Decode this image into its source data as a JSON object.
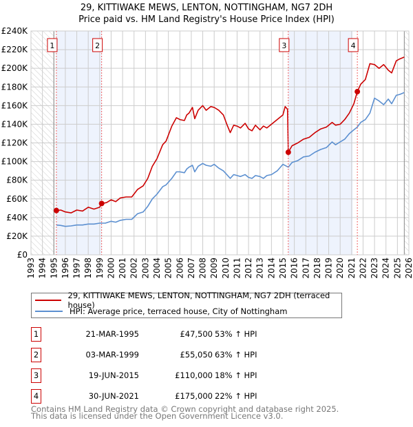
{
  "title": [
    "29, KITTIWAKE MEWS, LENTON, NOTTINGHAM, NG7 2DH",
    "Price paid vs. HM Land Registry's House Price Index (HPI)"
  ],
  "chart_data": {
    "type": "line",
    "title": "29, KITTIWAKE MEWS, LENTON, NOTTINGHAM, NG7 2DH — Price paid vs. HM Land Registry's House Price Index (HPI)",
    "xlim": [
      1993,
      2026
    ],
    "ylim": [
      0,
      240000
    ],
    "x_ticks": [
      "1993",
      "1994",
      "1995",
      "1996",
      "1997",
      "1998",
      "1999",
      "2000",
      "2001",
      "2002",
      "2003",
      "2004",
      "2005",
      "2006",
      "2007",
      "2008",
      "2009",
      "2010",
      "2011",
      "2012",
      "2013",
      "2014",
      "2015",
      "2016",
      "2017",
      "2018",
      "2019",
      "2020",
      "2021",
      "2022",
      "2023",
      "2024",
      "2025",
      "2026"
    ],
    "y_ticks": [
      {
        "v": 0,
        "l": "£0"
      },
      {
        "v": 20000,
        "l": "£20K"
      },
      {
        "v": 40000,
        "l": "£40K"
      },
      {
        "v": 60000,
        "l": "£60K"
      },
      {
        "v": 80000,
        "l": "£80K"
      },
      {
        "v": 100000,
        "l": "£100K"
      },
      {
        "v": 120000,
        "l": "£120K"
      },
      {
        "v": 140000,
        "l": "£140K"
      },
      {
        "v": 160000,
        "l": "£160K"
      },
      {
        "v": 180000,
        "l": "£180K"
      },
      {
        "v": 200000,
        "l": "£200K"
      },
      {
        "v": 220000,
        "l": "£220K"
      },
      {
        "v": 240000,
        "l": "£240K"
      }
    ],
    "grid": true,
    "shaded_ranges": [
      [
        1995.22,
        1999.17
      ],
      [
        2015.47,
        2021.1
      ]
    ],
    "hatched_ranges": [
      [
        1993,
        1995.0
      ],
      [
        2025.6,
        2026
      ]
    ],
    "series": [
      {
        "name": "29, KITTIWAKE MEWS, LENTON, NOTTINGHAM, NG7 2DH (terraced house)",
        "color": "#cc0000",
        "x": [
          1995.22,
          1995.6,
          1996,
          1996.5,
          1997,
          1997.5,
          1998,
          1998.5,
          1999,
          1999.17,
          1999.6,
          2000,
          2000.4,
          2000.8,
          2001.3,
          2001.8,
          2002.3,
          2002.8,
          2003.2,
          2003.6,
          2004,
          2004.5,
          2004.8,
          2005.3,
          2005.7,
          2006,
          2006.4,
          2006.6,
          2006.8,
          2007.1,
          2007.3,
          2007.6,
          2008,
          2008.3,
          2008.7,
          2009,
          2009.4,
          2009.8,
          2010.1,
          2010.4,
          2010.7,
          2011,
          2011.3,
          2011.7,
          2012,
          2012.3,
          2012.6,
          2013,
          2013.3,
          2013.6,
          2014,
          2014.5,
          2015,
          2015.2,
          2015.4,
          2015.47,
          2015.8,
          2016.3,
          2016.8,
          2017.3,
          2017.8,
          2018.3,
          2018.8,
          2019.3,
          2019.6,
          2020,
          2020.4,
          2020.8,
          2021.2,
          2021.5,
          2021.8,
          2022.2,
          2022.6,
          2023,
          2023.4,
          2023.8,
          2024.2,
          2024.5,
          2024.9,
          2025.2,
          2025.6
        ],
        "y": [
          47500,
          48000,
          46000,
          45000,
          48000,
          47000,
          51000,
          49000,
          51000,
          55050,
          56000,
          59000,
          57000,
          61000,
          62000,
          62000,
          70000,
          74000,
          82000,
          95000,
          103000,
          118000,
          122000,
          138000,
          147000,
          145000,
          144000,
          150000,
          152000,
          158000,
          146000,
          155000,
          160000,
          155000,
          159000,
          158000,
          155000,
          150000,
          140000,
          131000,
          139000,
          138000,
          136000,
          141000,
          135000,
          133000,
          139000,
          134000,
          138000,
          136000,
          140000,
          145000,
          150000,
          159000,
          156000,
          110000,
          117000,
          120000,
          124000,
          126000,
          131000,
          135000,
          137000,
          142000,
          139000,
          140000,
          145000,
          152000,
          162000,
          175000,
          183000,
          188000,
          205000,
          204000,
          200000,
          204000,
          198000,
          195000,
          208000,
          210000,
          212000
        ]
      },
      {
        "name": "HPI: Average price, terraced house, City of Nottingham",
        "color": "#5b8fd0",
        "x": [
          1995.22,
          1995.6,
          1996,
          1996.5,
          1997,
          1997.5,
          1998,
          1998.5,
          1999,
          1999.5,
          2000,
          2000.4,
          2000.8,
          2001.3,
          2001.8,
          2002.3,
          2002.8,
          2003.2,
          2003.6,
          2004,
          2004.5,
          2004.8,
          2005.3,
          2005.7,
          2006,
          2006.4,
          2006.6,
          2006.8,
          2007.1,
          2007.3,
          2007.6,
          2008,
          2008.3,
          2008.7,
          2009,
          2009.4,
          2009.8,
          2010.1,
          2010.4,
          2010.7,
          2011,
          2011.3,
          2011.7,
          2012,
          2012.3,
          2012.6,
          2013,
          2013.3,
          2013.6,
          2014,
          2014.5,
          2015,
          2015.47,
          2015.8,
          2016.3,
          2016.8,
          2017.3,
          2017.8,
          2018.3,
          2018.8,
          2019.3,
          2019.6,
          2020,
          2020.4,
          2020.8,
          2021.2,
          2021.5,
          2021.8,
          2022.2,
          2022.6,
          2023,
          2023.4,
          2023.8,
          2024.2,
          2024.5,
          2024.9,
          2025.2,
          2025.6
        ],
        "y": [
          32000,
          31500,
          30500,
          31000,
          32000,
          32000,
          33000,
          33000,
          34000,
          34000,
          36000,
          35000,
          37000,
          38000,
          38000,
          44000,
          46000,
          52000,
          60000,
          65000,
          73000,
          75000,
          82000,
          89000,
          89000,
          88000,
          92000,
          94000,
          96000,
          89000,
          95000,
          98000,
          96000,
          95000,
          97000,
          93000,
          90000,
          86000,
          82000,
          86000,
          85000,
          84000,
          86000,
          83000,
          82000,
          85000,
          84000,
          82000,
          85000,
          86000,
          90000,
          97000,
          94000,
          99000,
          101000,
          105000,
          106000,
          110000,
          113000,
          115000,
          121000,
          118000,
          121000,
          124000,
          130000,
          134000,
          137000,
          142000,
          145000,
          152000,
          168000,
          165000,
          161000,
          167000,
          162000,
          171000,
          172000,
          174000
        ]
      }
    ],
    "sale_markers": [
      {
        "id": "1",
        "x": 1995.22,
        "y": 47500
      },
      {
        "id": "2",
        "x": 1999.17,
        "y": 55050
      },
      {
        "id": "3",
        "x": 2015.47,
        "y": 110000
      },
      {
        "id": "4",
        "x": 2021.5,
        "y": 175000
      }
    ]
  },
  "legend": [
    {
      "label": "29, KITTIWAKE MEWS, LENTON, NOTTINGHAM, NG7 2DH (terraced house)",
      "color": "#cc0000"
    },
    {
      "label": "HPI: Average price, terraced house, City of Nottingham",
      "color": "#5b8fd0"
    }
  ],
  "sales": [
    {
      "num": "1",
      "date": "21-MAR-1995",
      "price": "£47,500",
      "hpi": "53% ↑ HPI"
    },
    {
      "num": "2",
      "date": "03-MAR-1999",
      "price": "£55,050",
      "hpi": "63% ↑ HPI"
    },
    {
      "num": "3",
      "date": "19-JUN-2015",
      "price": "£110,000",
      "hpi": "18% ↑ HPI"
    },
    {
      "num": "4",
      "date": "30-JUN-2021",
      "price": "£175,000",
      "hpi": "22% ↑ HPI"
    }
  ],
  "footer": [
    "Contains HM Land Registry data © Crown copyright and database right 2025.",
    "This data is licensed under the Open Government Licence v3.0."
  ]
}
